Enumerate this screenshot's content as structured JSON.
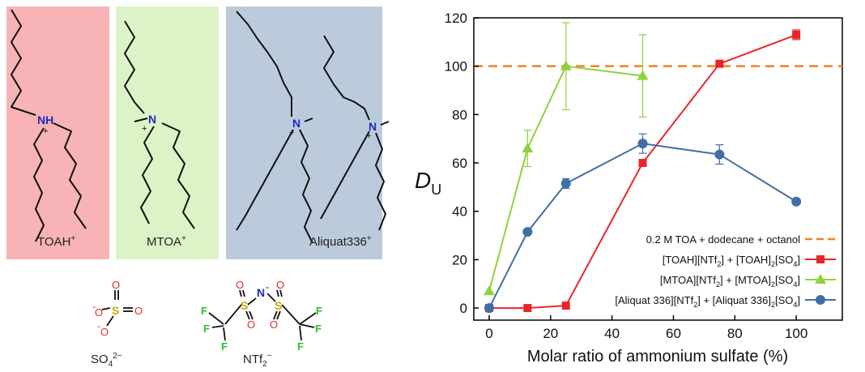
{
  "structures": {
    "panels": [
      {
        "label": "TOAH",
        "sup": "+",
        "color": "#f7b3b5"
      },
      {
        "label": "MTOA",
        "sup": "+",
        "color": "#dcf3c7"
      },
      {
        "label": "Aliquat336",
        "sup": "+",
        "color": "#bccbdb"
      }
    ],
    "atoms": {
      "nh": "NH",
      "n": "N",
      "plus": "+",
      "s": "S",
      "o": "O",
      "f": "F",
      "minus": "-"
    },
    "anions": [
      {
        "base": "SO",
        "sub": "4",
        "sup": "2−"
      },
      {
        "base": "NTf",
        "sub": "2",
        "sup": "−"
      }
    ]
  },
  "chart_data": {
    "type": "line",
    "xlabel": "Molar ratio of ammonium sulfate (%)",
    "ylabel": {
      "main": "D",
      "sub": "U"
    },
    "xlim": [
      -5,
      115
    ],
    "ylim": [
      -5,
      120
    ],
    "xticks": [
      0,
      20,
      40,
      60,
      80,
      100
    ],
    "yticks": [
      0,
      20,
      40,
      60,
      80,
      100,
      120
    ],
    "grid": false,
    "legend_position": "bottom-right",
    "reference_line": {
      "name": "0.2 M TOA + dodecane + octanol",
      "y": 100,
      "color": "#f0821e",
      "style": "dashed"
    },
    "series": [
      {
        "name_parts": [
          [
            "[TOAH][NTf",
            ""
          ],
          [
            "2",
            "sub"
          ],
          [
            "] + [TOAH]",
            ""
          ],
          [
            "2",
            "sub"
          ],
          [
            "[SO",
            ""
          ],
          [
            "4",
            "sub"
          ],
          [
            "]",
            ""
          ]
        ],
        "color": "#e8262a",
        "marker": "square",
        "x": [
          0,
          12.5,
          25,
          50,
          75,
          100
        ],
        "y": [
          0,
          0,
          1,
          60,
          101,
          113
        ],
        "err": [
          0,
          0,
          0,
          0,
          0,
          2
        ]
      },
      {
        "name_parts": [
          [
            "[MTOA][NTf",
            ""
          ],
          [
            "2",
            "sub"
          ],
          [
            "] + [MTOA]",
            ""
          ],
          [
            "2",
            "sub"
          ],
          [
            "[SO",
            ""
          ],
          [
            "4",
            "sub"
          ],
          [
            "]",
            ""
          ]
        ],
        "color": "#8fd23a",
        "marker": "triangle",
        "x": [
          0,
          12.5,
          25,
          50
        ],
        "y": [
          7,
          66,
          100,
          96
        ],
        "err": [
          0,
          7.5,
          18,
          17
        ]
      },
      {
        "name_parts": [
          [
            "[Aliquat 336][NTf",
            ""
          ],
          [
            "2",
            "sub"
          ],
          [
            "] + [Aliquat 336]",
            ""
          ],
          [
            "2",
            "sub"
          ],
          [
            "[SO",
            ""
          ],
          [
            "4",
            "sub"
          ],
          [
            "]",
            ""
          ]
        ],
        "color": "#3f6fa4",
        "marker": "circle",
        "x": [
          0,
          12.5,
          25,
          50,
          75,
          100
        ],
        "y": [
          0,
          31.5,
          51.5,
          68,
          63.5,
          44
        ],
        "err": [
          0,
          0,
          2,
          4,
          4,
          0
        ]
      }
    ]
  }
}
